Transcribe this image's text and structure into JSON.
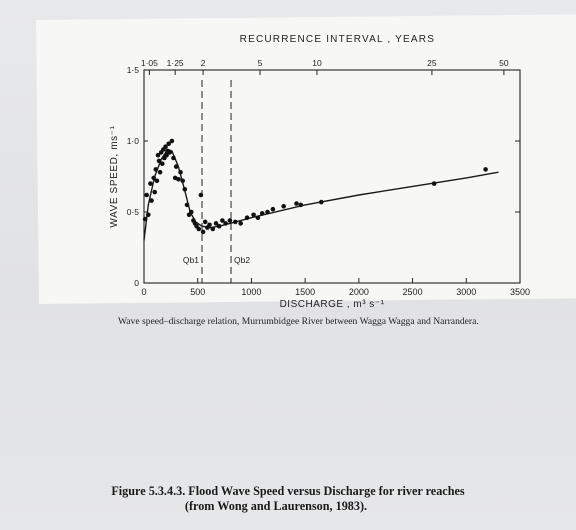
{
  "chart_data": {
    "type": "scatter",
    "top_axis_label": "RECURRENCE INTERVAL , YEARS",
    "top_tick_labels": [
      "1·05",
      "1·25",
      "2",
      "5",
      "10",
      "25",
      "50"
    ],
    "top_tick_discharge": [
      50,
      290,
      550,
      1080,
      1610,
      2680,
      3350
    ],
    "xlabel": "DISCHARGE , m³ s⁻¹",
    "ylabel": "WAVE SPEED, ms⁻¹",
    "xlim": [
      0,
      3500
    ],
    "ylim": [
      0,
      1.5
    ],
    "x_ticks": [
      0,
      500,
      1000,
      1500,
      2000,
      2500,
      3000,
      3500
    ],
    "y_ticks": [
      0,
      0.5,
      1.0,
      1.5
    ],
    "y_tick_labels": [
      "0",
      "0·5",
      "1·0",
      "1·5"
    ],
    "grid": false,
    "legend": "none",
    "reference_lines": [
      {
        "name": "Qb1",
        "x": 540
      },
      {
        "name": "Qb2",
        "x": 810
      }
    ],
    "points": [
      {
        "x": 10,
        "y": 0.45
      },
      {
        "x": 25,
        "y": 0.62
      },
      {
        "x": 40,
        "y": 0.48
      },
      {
        "x": 60,
        "y": 0.7
      },
      {
        "x": 70,
        "y": 0.58
      },
      {
        "x": 90,
        "y": 0.74
      },
      {
        "x": 100,
        "y": 0.64
      },
      {
        "x": 110,
        "y": 0.8
      },
      {
        "x": 120,
        "y": 0.72
      },
      {
        "x": 130,
        "y": 0.9
      },
      {
        "x": 140,
        "y": 0.86
      },
      {
        "x": 150,
        "y": 0.78
      },
      {
        "x": 160,
        "y": 0.92
      },
      {
        "x": 170,
        "y": 0.84
      },
      {
        "x": 180,
        "y": 0.94
      },
      {
        "x": 190,
        "y": 0.88
      },
      {
        "x": 200,
        "y": 0.96
      },
      {
        "x": 210,
        "y": 0.9
      },
      {
        "x": 220,
        "y": 0.93
      },
      {
        "x": 230,
        "y": 0.98
      },
      {
        "x": 240,
        "y": 0.92
      },
      {
        "x": 260,
        "y": 1.0
      },
      {
        "x": 275,
        "y": 0.88
      },
      {
        "x": 290,
        "y": 0.74
      },
      {
        "x": 300,
        "y": 0.82
      },
      {
        "x": 320,
        "y": 0.73
      },
      {
        "x": 340,
        "y": 0.78
      },
      {
        "x": 360,
        "y": 0.72
      },
      {
        "x": 380,
        "y": 0.66
      },
      {
        "x": 400,
        "y": 0.55
      },
      {
        "x": 420,
        "y": 0.48
      },
      {
        "x": 440,
        "y": 0.5
      },
      {
        "x": 460,
        "y": 0.44
      },
      {
        "x": 475,
        "y": 0.42
      },
      {
        "x": 490,
        "y": 0.4
      },
      {
        "x": 510,
        "y": 0.38
      },
      {
        "x": 530,
        "y": 0.62
      },
      {
        "x": 550,
        "y": 0.36
      },
      {
        "x": 570,
        "y": 0.43
      },
      {
        "x": 590,
        "y": 0.39
      },
      {
        "x": 610,
        "y": 0.41
      },
      {
        "x": 640,
        "y": 0.38
      },
      {
        "x": 670,
        "y": 0.42
      },
      {
        "x": 700,
        "y": 0.4
      },
      {
        "x": 730,
        "y": 0.44
      },
      {
        "x": 760,
        "y": 0.42
      },
      {
        "x": 800,
        "y": 0.44
      },
      {
        "x": 850,
        "y": 0.43
      },
      {
        "x": 900,
        "y": 0.42
      },
      {
        "x": 960,
        "y": 0.46
      },
      {
        "x": 1020,
        "y": 0.48
      },
      {
        "x": 1060,
        "y": 0.46
      },
      {
        "x": 1100,
        "y": 0.49
      },
      {
        "x": 1150,
        "y": 0.5
      },
      {
        "x": 1200,
        "y": 0.52
      },
      {
        "x": 1300,
        "y": 0.54
      },
      {
        "x": 1420,
        "y": 0.56
      },
      {
        "x": 1460,
        "y": 0.55
      },
      {
        "x": 1650,
        "y": 0.57
      },
      {
        "x": 2700,
        "y": 0.7
      },
      {
        "x": 3180,
        "y": 0.8
      }
    ],
    "fitted_curve": [
      {
        "x": 0,
        "y": 0.3
      },
      {
        "x": 40,
        "y": 0.55
      },
      {
        "x": 100,
        "y": 0.75
      },
      {
        "x": 160,
        "y": 0.87
      },
      {
        "x": 220,
        "y": 0.94
      },
      {
        "x": 260,
        "y": 0.93
      },
      {
        "x": 320,
        "y": 0.82
      },
      {
        "x": 380,
        "y": 0.65
      },
      {
        "x": 430,
        "y": 0.5
      },
      {
        "x": 480,
        "y": 0.43
      },
      {
        "x": 540,
        "y": 0.4
      },
      {
        "x": 620,
        "y": 0.39
      },
      {
        "x": 700,
        "y": 0.4
      },
      {
        "x": 800,
        "y": 0.42
      },
      {
        "x": 1000,
        "y": 0.46
      },
      {
        "x": 1500,
        "y": 0.55
      },
      {
        "x": 2000,
        "y": 0.62
      },
      {
        "x": 2500,
        "y": 0.68
      },
      {
        "x": 3000,
        "y": 0.74
      },
      {
        "x": 3300,
        "y": 0.78
      }
    ]
  },
  "caption": "Wave speed–discharge relation, Murrumbidgee River between Wagga Wagga and Narrandera.",
  "figure_title": {
    "line1": "Figure 5.3.4.3. Flood Wave Speed versus Discharge for river reaches",
    "line2": "(from Wong and Laurenson, 1983)."
  }
}
